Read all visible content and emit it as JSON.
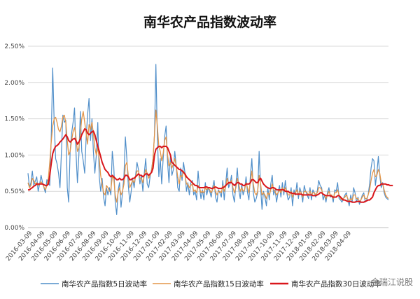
{
  "chart_data": {
    "type": "line",
    "title": "南华农产品指数波动率",
    "xlabel": "",
    "ylabel": "",
    "ylim": [
      0,
      2.5
    ],
    "yticks": [
      "0.00%",
      "0.50%",
      "1.00%",
      "1.50%",
      "2.00%",
      "2.50%"
    ],
    "xticks": [
      "2016-03-09",
      "2016-04-09",
      "2016-05-09",
      "2016-06-09",
      "2016-07-09",
      "2016-08-09",
      "2016-09-09",
      "2016-10-09",
      "2016-11-09",
      "2016-12-09",
      "2017-01-09",
      "2017-02-09",
      "2017-03-09",
      "2017-04-09",
      "2017-05-09",
      "2017-06-09",
      "2017-07-09",
      "2017-08-09",
      "2017-09-09",
      "2017-10-09",
      "2017-11-09",
      "2017-12-09",
      "2018-01-09",
      "2018-02-09",
      "2018-03-09",
      "2018-04-09"
    ],
    "grid": "horizontal",
    "legend_position": "bottom",
    "series": [
      {
        "name": "南华农产品指数5日波动率",
        "color": "#4f8ec9",
        "values": [
          0.75,
          0.55,
          0.62,
          0.78,
          0.58,
          0.64,
          0.7,
          0.5,
          0.6,
          0.72,
          0.62,
          0.55,
          0.48,
          0.66,
          0.62,
          0.58,
          1.25,
          2.2,
          1.45,
          0.95,
          0.88,
          0.75,
          0.55,
          1.05,
          1.55,
          1.45,
          1.48,
          0.55,
          0.35,
          1.05,
          1.3,
          1.45,
          1.65,
          1.05,
          0.62,
          1.0,
          1.6,
          1.05,
          0.92,
          0.75,
          1.25,
          1.55,
          1.78,
          1.2,
          1.5,
          1.05,
          0.75,
          1.0,
          1.45,
          0.7,
          0.5,
          0.68,
          0.42,
          0.3,
          0.55,
          0.45,
          0.55,
          0.45,
          1.05,
          0.85,
          0.35,
          0.18,
          0.52,
          0.62,
          0.28,
          0.48,
          0.72,
          1.25,
          0.95,
          0.58,
          0.35,
          0.5,
          0.68,
          0.55,
          0.72,
          0.9,
          0.8,
          0.6,
          0.72,
          0.5,
          0.75,
          0.95,
          0.6,
          0.55,
          0.7,
          0.8,
          0.95,
          1.28,
          2.25,
          1.25,
          0.7,
          0.95,
          0.6,
          0.95,
          1.25,
          1.4,
          0.9,
          0.62,
          1.0,
          0.72,
          0.8,
          1.05,
          0.85,
          0.55,
          0.5,
          0.82,
          0.65,
          0.9,
          0.75,
          0.5,
          0.62,
          0.45,
          0.62,
          0.65,
          0.45,
          0.5,
          0.38,
          0.78,
          0.55,
          0.4,
          0.52,
          0.38,
          0.62,
          0.45,
          0.55,
          0.5,
          0.42,
          0.55,
          0.65,
          0.42,
          0.35,
          0.52,
          0.48,
          0.42,
          0.65,
          0.38,
          0.6,
          0.82,
          0.55,
          0.6,
          0.72,
          0.45,
          0.35,
          0.6,
          0.82,
          0.52,
          0.4,
          0.6,
          0.45,
          0.52,
          0.7,
          0.48,
          0.38,
          0.72,
          0.95,
          0.48,
          0.35,
          0.4,
          0.48,
          1.05,
          0.55,
          0.25,
          0.5,
          0.42,
          0.3,
          0.55,
          0.38,
          0.6,
          0.72,
          0.45,
          0.52,
          0.35,
          0.48,
          0.58,
          0.42,
          0.62,
          0.45,
          0.65,
          0.48,
          0.38,
          0.42,
          0.55,
          0.3,
          0.52,
          0.45,
          0.62,
          0.4,
          0.55,
          0.48,
          0.35,
          0.58,
          0.5,
          0.45,
          0.4,
          0.55,
          0.38,
          0.52,
          0.48,
          0.42,
          0.5,
          0.65,
          0.58,
          0.55,
          0.38,
          0.45,
          0.35,
          0.48,
          0.55,
          0.42,
          0.45,
          0.35,
          0.52,
          0.5,
          0.62,
          0.4,
          0.38,
          0.35,
          0.4,
          0.45,
          0.48,
          0.38,
          0.3,
          0.45,
          0.35,
          0.55,
          0.48,
          0.35,
          0.42,
          0.32,
          0.38,
          0.45,
          0.48,
          0.35,
          0.38,
          0.45,
          0.6,
          0.82,
          0.95,
          0.92,
          0.58,
          0.75,
          0.98,
          0.72,
          0.55,
          0.62,
          0.48,
          0.42,
          0.4,
          0.38
        ]
      },
      {
        "name": "南华农产品指数15日波动率",
        "color": "#e39548",
        "values": [
          0.62,
          0.55,
          0.58,
          0.68,
          0.65,
          0.6,
          0.62,
          0.58,
          0.6,
          0.63,
          0.6,
          0.56,
          0.52,
          0.58,
          0.68,
          0.9,
          1.18,
          1.4,
          1.5,
          1.52,
          1.45,
          1.35,
          1.32,
          1.4,
          1.52,
          1.55,
          1.45,
          1.2,
          1.0,
          1.05,
          1.2,
          1.32,
          1.38,
          1.25,
          1.05,
          1.1,
          1.3,
          1.5,
          1.6,
          1.45,
          1.3,
          1.15,
          1.42,
          1.35,
          1.45,
          1.3,
          1.1,
          1.0,
          1.1,
          0.95,
          0.72,
          0.6,
          0.48,
          0.45,
          0.58,
          0.55,
          0.5,
          0.52,
          0.7,
          0.68,
          0.45,
          0.35,
          0.48,
          0.55,
          0.45,
          0.5,
          0.6,
          0.85,
          0.9,
          0.72,
          0.55,
          0.6,
          0.65,
          0.62,
          0.7,
          0.78,
          0.78,
          0.68,
          0.68,
          0.62,
          0.72,
          0.8,
          0.75,
          0.68,
          0.72,
          0.78,
          0.95,
          1.28,
          1.62,
          1.4,
          1.12,
          1.05,
          0.92,
          1.02,
          1.2,
          1.25,
          1.0,
          0.85,
          0.9,
          0.82,
          0.88,
          0.95,
          0.85,
          0.7,
          0.6,
          0.72,
          0.7,
          0.78,
          0.72,
          0.6,
          0.6,
          0.55,
          0.58,
          0.6,
          0.5,
          0.52,
          0.48,
          0.58,
          0.55,
          0.48,
          0.5,
          0.48,
          0.55,
          0.52,
          0.55,
          0.52,
          0.48,
          0.52,
          0.58,
          0.5,
          0.45,
          0.5,
          0.5,
          0.48,
          0.58,
          0.5,
          0.56,
          0.68,
          0.6,
          0.62,
          0.65,
          0.55,
          0.48,
          0.55,
          0.68,
          0.6,
          0.5,
          0.55,
          0.5,
          0.52,
          0.62,
          0.55,
          0.48,
          0.62,
          0.78,
          0.6,
          0.48,
          0.45,
          0.5,
          0.72,
          0.6,
          0.45,
          0.48,
          0.45,
          0.4,
          0.48,
          0.45,
          0.52,
          0.6,
          0.52,
          0.5,
          0.45,
          0.48,
          0.52,
          0.48,
          0.55,
          0.5,
          0.55,
          0.5,
          0.45,
          0.45,
          0.5,
          0.42,
          0.48,
          0.48,
          0.52,
          0.45,
          0.5,
          0.48,
          0.42,
          0.5,
          0.5,
          0.48,
          0.45,
          0.5,
          0.45,
          0.48,
          0.48,
          0.45,
          0.48,
          0.55,
          0.55,
          0.52,
          0.45,
          0.45,
          0.4,
          0.45,
          0.5,
          0.45,
          0.45,
          0.4,
          0.48,
          0.48,
          0.52,
          0.45,
          0.4,
          0.38,
          0.4,
          0.42,
          0.45,
          0.4,
          0.36,
          0.4,
          0.38,
          0.45,
          0.45,
          0.4,
          0.4,
          0.36,
          0.38,
          0.42,
          0.45,
          0.4,
          0.4,
          0.45,
          0.52,
          0.65,
          0.75,
          0.8,
          0.7,
          0.72,
          0.8,
          0.75,
          0.62,
          0.6,
          0.52,
          0.45,
          0.42,
          0.4
        ]
      },
      {
        "name": "南华农产品指数30日波动率",
        "color": "#d9161b",
        "values": [
          0.52,
          0.52,
          0.54,
          0.55,
          0.57,
          0.58,
          0.6,
          0.6,
          0.6,
          0.6,
          0.6,
          0.59,
          0.58,
          0.58,
          0.6,
          0.72,
          0.88,
          1.02,
          1.08,
          1.12,
          1.13,
          1.15,
          1.18,
          1.2,
          1.22,
          1.25,
          1.28,
          1.25,
          1.2,
          1.18,
          1.2,
          1.22,
          1.23,
          1.2,
          1.15,
          1.18,
          1.22,
          1.28,
          1.32,
          1.36,
          1.35,
          1.3,
          1.28,
          1.3,
          1.32,
          1.33,
          1.28,
          1.2,
          1.12,
          1.05,
          0.98,
          0.9,
          0.85,
          0.8,
          0.78,
          0.76,
          0.72,
          0.7,
          0.72,
          0.7,
          0.68,
          0.66,
          0.66,
          0.68,
          0.66,
          0.66,
          0.68,
          0.72,
          0.72,
          0.7,
          0.66,
          0.66,
          0.68,
          0.68,
          0.7,
          0.72,
          0.74,
          0.72,
          0.72,
          0.7,
          0.72,
          0.74,
          0.74,
          0.72,
          0.74,
          0.76,
          0.82,
          1.0,
          1.08,
          1.1,
          1.12,
          1.12,
          1.1,
          1.12,
          1.12,
          1.12,
          1.1,
          1.05,
          1.0,
          0.9,
          0.88,
          0.86,
          0.84,
          0.82,
          0.8,
          0.8,
          0.78,
          0.76,
          0.74,
          0.7,
          0.68,
          0.66,
          0.64,
          0.62,
          0.6,
          0.58,
          0.58,
          0.56,
          0.55,
          0.55,
          0.55,
          0.55,
          0.56,
          0.56,
          0.55,
          0.55,
          0.54,
          0.54,
          0.55,
          0.56,
          0.55,
          0.54,
          0.54,
          0.54,
          0.55,
          0.56,
          0.58,
          0.6,
          0.62,
          0.62,
          0.62,
          0.6,
          0.58,
          0.6,
          0.62,
          0.62,
          0.6,
          0.6,
          0.58,
          0.58,
          0.6,
          0.6,
          0.6,
          0.62,
          0.66,
          0.66,
          0.64,
          0.62,
          0.62,
          0.66,
          0.68,
          0.64,
          0.6,
          0.58,
          0.56,
          0.55,
          0.54,
          0.54,
          0.55,
          0.55,
          0.54,
          0.52,
          0.52,
          0.52,
          0.52,
          0.52,
          0.52,
          0.5,
          0.5,
          0.5,
          0.48,
          0.48,
          0.47,
          0.47,
          0.46,
          0.46,
          0.46,
          0.46,
          0.46,
          0.45,
          0.45,
          0.45,
          0.45,
          0.45,
          0.45,
          0.45,
          0.44,
          0.44,
          0.44,
          0.45,
          0.46,
          0.48,
          0.48,
          0.46,
          0.45,
          0.44,
          0.44,
          0.44,
          0.44,
          0.43,
          0.42,
          0.42,
          0.42,
          0.44,
          0.44,
          0.42,
          0.4,
          0.38,
          0.38,
          0.37,
          0.36,
          0.36,
          0.36,
          0.35,
          0.35,
          0.35,
          0.36,
          0.36,
          0.36,
          0.35,
          0.35,
          0.35,
          0.36,
          0.37,
          0.38,
          0.38,
          0.4,
          0.42,
          0.48,
          0.52,
          0.56,
          0.58,
          0.58,
          0.6,
          0.6,
          0.6,
          0.6,
          0.59,
          0.59,
          0.58,
          0.58,
          0.58
        ]
      }
    ]
  },
  "legend": [
    {
      "label": "南华农产品指数5日波动率",
      "color": "#4f8ec9"
    },
    {
      "label": "南华农产品指数15日波动率",
      "color": "#e39548"
    },
    {
      "label": "南华农产品指数30日波动率",
      "color": "#d9161b"
    }
  ],
  "watermark": "金瑞江说股",
  "colors": {
    "grid": "#d9d9d9",
    "axis": "#bfbfbf"
  }
}
